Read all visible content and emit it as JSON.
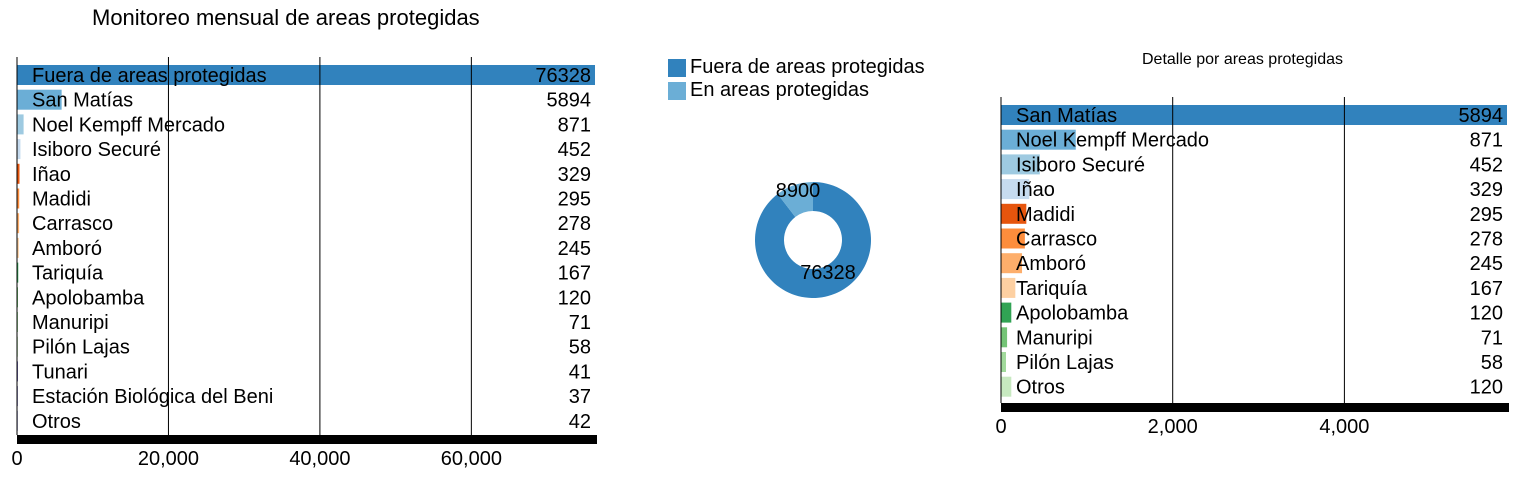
{
  "chart_data": [
    {
      "type": "bar",
      "orientation": "horizontal",
      "title": "Monitoreo mensual de areas protegidas",
      "categories": [
        "Fuera de areas protegidas",
        "San Matías",
        "Noel Kempff Mercado",
        "Isiboro Securé",
        "Iñao",
        "Madidi",
        "Carrasco",
        "Amboró",
        "Tariquía",
        "Apolobamba",
        "Manuripi",
        "Pilón Lajas",
        "Tunari",
        "Estación Biológica del Beni",
        "Otros"
      ],
      "values": [
        76328,
        5894,
        871,
        452,
        329,
        295,
        278,
        245,
        167,
        120,
        71,
        58,
        41,
        37,
        42
      ],
      "xlim": [
        0,
        76328
      ],
      "xticks": [
        "0",
        "20,000",
        "40,000",
        "60,000"
      ],
      "xtick_values": [
        0,
        20000,
        40000,
        60000
      ],
      "grid": true
    },
    {
      "type": "pie",
      "donut": true,
      "legend": [
        "Fuera de areas protegidas",
        "En areas protegidas"
      ],
      "legend_position": "top",
      "values": [
        76328,
        8900
      ],
      "labels": [
        "76328",
        "8900"
      ]
    },
    {
      "type": "bar",
      "orientation": "horizontal",
      "title": "Detalle por areas protegidas",
      "categories": [
        "San Matías",
        "Noel Kempff Mercado",
        "Isiboro Securé",
        "Iñao",
        "Madidi",
        "Carrasco",
        "Amboró",
        "Tariquía",
        "Apolobamba",
        "Manuripi",
        "Pilón Lajas",
        "Otros"
      ],
      "values": [
        5894,
        871,
        452,
        329,
        295,
        278,
        245,
        167,
        120,
        71,
        58,
        120
      ],
      "xlim": [
        0,
        5894
      ],
      "xticks": [
        "0",
        "2,000",
        "4,000"
      ],
      "xtick_values": [
        0,
        2000,
        4000
      ],
      "grid": true
    }
  ],
  "colors": [
    "#3182bd",
    "#6baed6",
    "#9ecae1",
    "#c6dbef",
    "#e6550d",
    "#fd8d3c",
    "#fdae6b",
    "#fdd0a2",
    "#31a354",
    "#74c476",
    "#a1d99b",
    "#c7e9c0",
    "#756bb1",
    "#9e9ac8",
    "#bcbddc"
  ]
}
